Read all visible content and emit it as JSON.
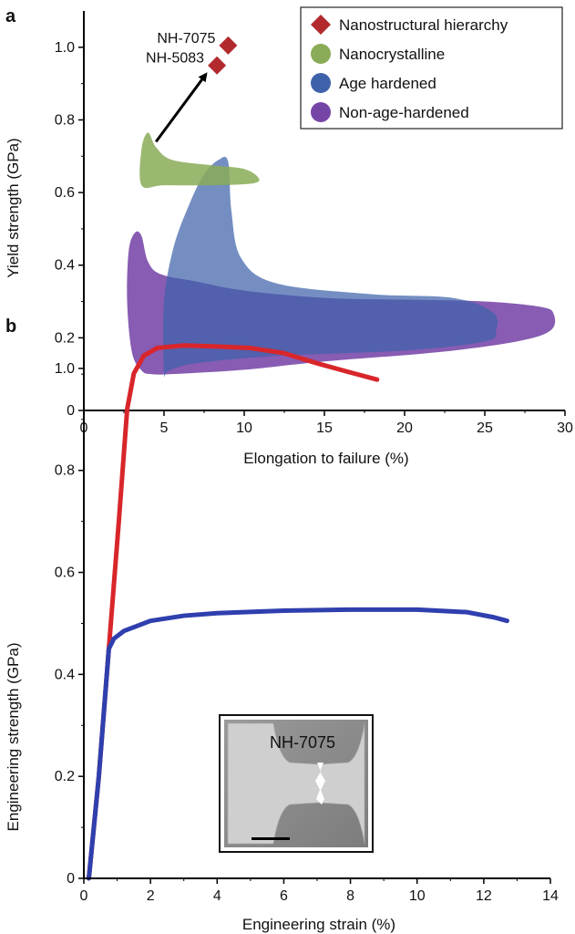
{
  "panels": [
    {
      "letter": "a"
    },
    {
      "letter": "b"
    }
  ],
  "chart_data": [
    {
      "type": "scatter",
      "xlabel": "Elongation to failure (%)",
      "ylabel": "Yield strength (GPa)",
      "xlim": [
        0,
        30
      ],
      "ylim": [
        0,
        1.1
      ],
      "xticks": [
        0,
        5,
        10,
        15,
        20,
        25,
        30
      ],
      "yticks": [
        0,
        0.2,
        0.4,
        0.6,
        0.8,
        1.0
      ],
      "ytick_labels": [
        "0",
        "0.2",
        "0.4",
        "0.6",
        "0.8",
        "1.0"
      ],
      "legend_placement": "top-right",
      "grid": false,
      "series": [
        {
          "name": "Nanostructural hierarchy",
          "color": "#b22a2e",
          "marker": "diamond",
          "points": [
            {
              "label": "NH-7075",
              "x": 9.0,
              "y": 1.005
            },
            {
              "label": "NH-5083",
              "x": 8.3,
              "y": 0.95
            }
          ]
        },
        {
          "name": "Nanocrystalline",
          "color": "#8aab57",
          "region": true,
          "polygon": [
            [
              3.6,
              0.62
            ],
            [
              3.6,
              0.72
            ],
            [
              4.0,
              0.765
            ],
            [
              4.5,
              0.725
            ],
            [
              5.5,
              0.69
            ],
            [
              8,
              0.675
            ],
            [
              10,
              0.665
            ],
            [
              10.9,
              0.64
            ],
            [
              10.5,
              0.625
            ],
            [
              8,
              0.62
            ],
            [
              5,
              0.62
            ]
          ]
        },
        {
          "name": "Age hardened",
          "color": "#3e62aa",
          "region": true,
          "polygon": [
            [
              5.0,
              0.105
            ],
            [
              5.0,
              0.3
            ],
            [
              5.6,
              0.45
            ],
            [
              6.6,
              0.57
            ],
            [
              7.5,
              0.65
            ],
            [
              8.4,
              0.69
            ],
            [
              9.0,
              0.685
            ],
            [
              9.2,
              0.55
            ],
            [
              9.8,
              0.42
            ],
            [
              12,
              0.35
            ],
            [
              18,
              0.32
            ],
            [
              23,
              0.31
            ],
            [
              25.5,
              0.27
            ],
            [
              25.7,
              0.22
            ],
            [
              25,
              0.19
            ],
            [
              20,
              0.165
            ],
            [
              12,
              0.15
            ],
            [
              7,
              0.13
            ],
            [
              5.3,
              0.11
            ]
          ]
        },
        {
          "name": "Non-age-hardened",
          "color": "#7646a7",
          "region": true,
          "polygon": [
            [
              2.7,
              0.3
            ],
            [
              2.8,
              0.44
            ],
            [
              3.2,
              0.49
            ],
            [
              3.6,
              0.48
            ],
            [
              4,
              0.41
            ],
            [
              4.8,
              0.375
            ],
            [
              7,
              0.355
            ],
            [
              10,
              0.33
            ],
            [
              15,
              0.31
            ],
            [
              20,
              0.305
            ],
            [
              25,
              0.3
            ],
            [
              28.5,
              0.285
            ],
            [
              29.3,
              0.265
            ],
            [
              29.1,
              0.22
            ],
            [
              27,
              0.19
            ],
            [
              22,
              0.16
            ],
            [
              15,
              0.135
            ],
            [
              10,
              0.112
            ],
            [
              5.5,
              0.1
            ],
            [
              4.2,
              0.1
            ],
            [
              3.6,
              0.11
            ],
            [
              3.0,
              0.16
            ]
          ]
        }
      ],
      "annotations": [
        {
          "type": "arrow",
          "from": [
            4.5,
            0.74
          ],
          "to": [
            7.6,
            0.925
          ]
        }
      ]
    },
    {
      "type": "line",
      "xlabel": "Engineering strain (%)",
      "ylabel": "Engineering strength (GPa)",
      "xlim": [
        0,
        14
      ],
      "ylim": [
        0,
        1.1
      ],
      "xticks": [
        0,
        2,
        4,
        6,
        8,
        10,
        12,
        14
      ],
      "yticks": [
        0,
        0.2,
        0.4,
        0.6,
        0.8,
        1.0
      ],
      "ytick_labels": [
        "0",
        "0.2",
        "0.4",
        "0.6",
        "0.8",
        "1.0"
      ],
      "grid": false,
      "series": [
        {
          "color": "#d8262b",
          "points": [
            [
              0.15,
              0
            ],
            [
              0.45,
              0.2
            ],
            [
              0.75,
              0.45
            ],
            [
              1.05,
              0.7
            ],
            [
              1.3,
              0.92
            ],
            [
              1.5,
              0.99
            ],
            [
              1.8,
              1.025
            ],
            [
              2.2,
              1.04
            ],
            [
              3,
              1.045
            ],
            [
              4,
              1.043
            ],
            [
              5,
              1.04
            ],
            [
              6,
              1.03
            ],
            [
              7,
              1.01
            ],
            [
              8,
              0.992
            ],
            [
              8.8,
              0.978
            ]
          ]
        },
        {
          "color": "#2f3fae",
          "points": [
            [
              0.15,
              0
            ],
            [
              0.45,
              0.2
            ],
            [
              0.75,
              0.45
            ],
            [
              0.9,
              0.47
            ],
            [
              1.2,
              0.485
            ],
            [
              2,
              0.505
            ],
            [
              3,
              0.515
            ],
            [
              4,
              0.52
            ],
            [
              6,
              0.525
            ],
            [
              8,
              0.527
            ],
            [
              10,
              0.527
            ],
            [
              11.5,
              0.522
            ],
            [
              12.3,
              0.512
            ],
            [
              12.7,
              0.505
            ]
          ]
        }
      ],
      "inset": {
        "label": "NH-7075"
      }
    }
  ]
}
